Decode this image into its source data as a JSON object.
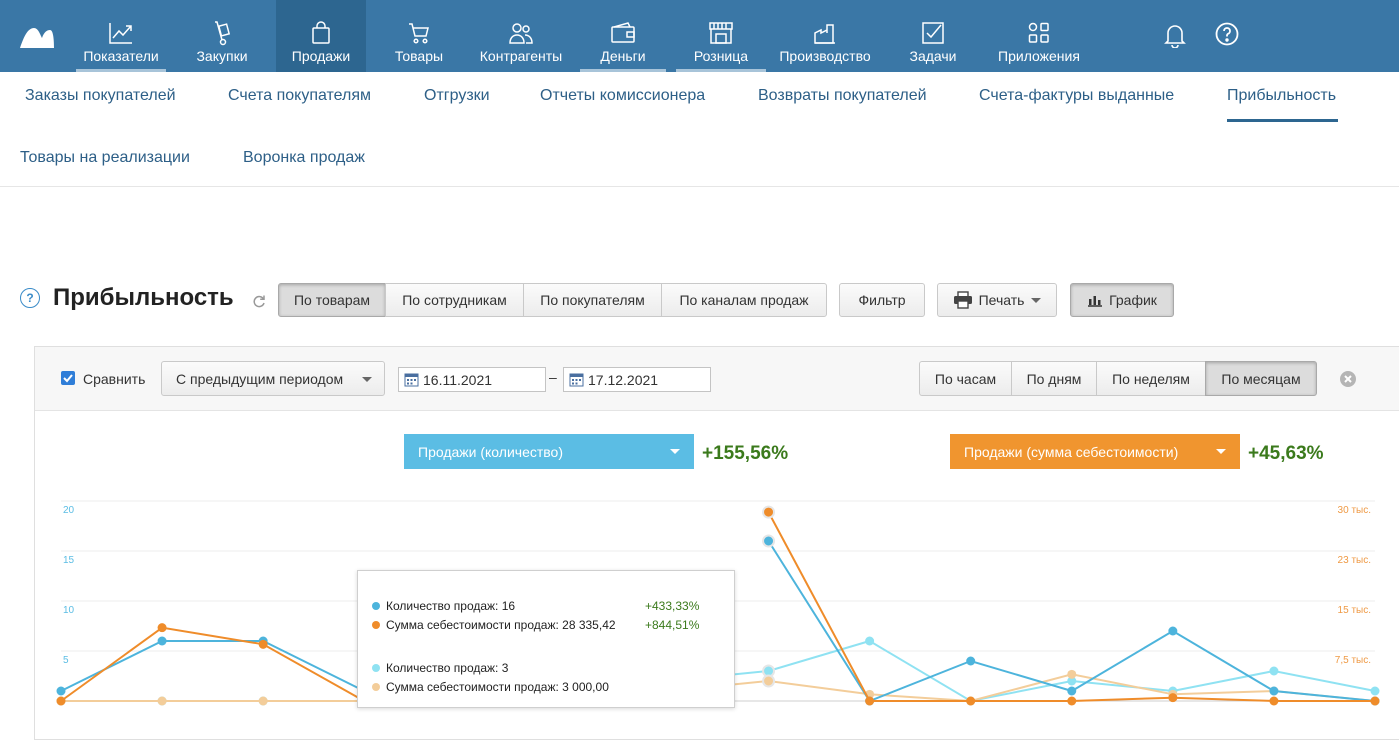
{
  "nav": {
    "items": [
      {
        "label": "Показатели",
        "icon": "chart-line-icon"
      },
      {
        "label": "Закупки",
        "icon": "hand-truck-icon"
      },
      {
        "label": "Продажи",
        "icon": "shopping-bag-icon"
      },
      {
        "label": "Товары",
        "icon": "cart-icon"
      },
      {
        "label": "Контрагенты",
        "icon": "people-icon"
      },
      {
        "label": "Деньги",
        "icon": "wallet-icon"
      },
      {
        "label": "Розница",
        "icon": "store-icon"
      },
      {
        "label": "Производство",
        "icon": "factory-icon"
      },
      {
        "label": "Задачи",
        "icon": "checkbox-icon"
      },
      {
        "label": "Приложения",
        "icon": "apps-icon"
      }
    ],
    "active": "Продажи"
  },
  "subnav": {
    "items": [
      "Заказы покупателей",
      "Счета покупателям",
      "Отгрузки",
      "Отчеты комиссионера",
      "Возвраты покупателей",
      "Счета-фактуры выданные",
      "Прибыльность",
      "Товары на реализации",
      "Воронка продаж"
    ],
    "active": "Прибыльность"
  },
  "page": {
    "help": "?",
    "title": "Прибыльность",
    "view_tabs": [
      "По товарам",
      "По сотрудникам",
      "По покупателям",
      "По каналам продаж"
    ],
    "filter_label": "Фильтр",
    "print_label": "Печать",
    "chart_label": "График"
  },
  "toolbar": {
    "compare_label": "Сравнить",
    "compare_checked": true,
    "compare_mode": "С предыдущим периодом",
    "date_from": "16.11.2021",
    "date_sep": "–",
    "date_to": "17.12.2021",
    "periods": [
      "По часам",
      "По дням",
      "По неделям",
      "По месяцам"
    ],
    "active_period": "По месяцам"
  },
  "metrics": {
    "left": {
      "label": "Продажи (количество)",
      "change": "+155,56%",
      "color": "#52b8e0"
    },
    "right": {
      "label": "Продажи (сумма себестоимости)",
      "change": "+45,63%",
      "color": "#ef9230"
    }
  },
  "chart_data": {
    "type": "line",
    "y_left_ticks": [
      "20",
      "15",
      "10",
      "5"
    ],
    "y_right_ticks": [
      "30 тыс.",
      "23 тыс.",
      "15 тыс.",
      "7,5 тыс."
    ],
    "ylim_left": [
      0,
      20
    ],
    "ylim_right": [
      0,
      30000
    ],
    "grid": true,
    "series": [
      {
        "values": [
          1,
          6,
          6,
          1,
          null,
          null,
          null,
          16,
          0,
          4,
          1,
          7,
          1,
          0
        ],
        "color": "#4db4dc",
        "axis": "left"
      },
      {
        "values": [
          0,
          11000,
          8500,
          0,
          null,
          null,
          null,
          28335,
          0,
          0,
          0,
          500,
          0,
          0
        ],
        "color": "#ef8c2a",
        "axis": "right"
      },
      {
        "values": [
          0,
          0,
          0,
          0,
          null,
          null,
          2,
          3,
          6,
          0,
          2,
          1,
          3,
          1
        ],
        "color": "#8fe2f2",
        "axis": "left"
      },
      {
        "values": [
          0,
          0,
          0,
          0,
          null,
          null,
          1500,
          3000,
          1000,
          0,
          4000,
          1000,
          1500,
          0
        ],
        "color": "#f3cd9a",
        "axis": "right"
      }
    ]
  },
  "tooltip": {
    "cur_qty_label": "Количество продаж:",
    "cur_qty_value": "16",
    "cur_qty_change": "+433,33%",
    "cur_sum_label": "Сумма себестоимости продаж:",
    "cur_sum_value": "28 335,42",
    "cur_sum_change": "+844,51%",
    "prev_qty_label": "Количество продаж:",
    "prev_qty_value": "3",
    "prev_sum_label": "Сумма себестоимости продаж:",
    "prev_sum_value": "3 000,00"
  }
}
